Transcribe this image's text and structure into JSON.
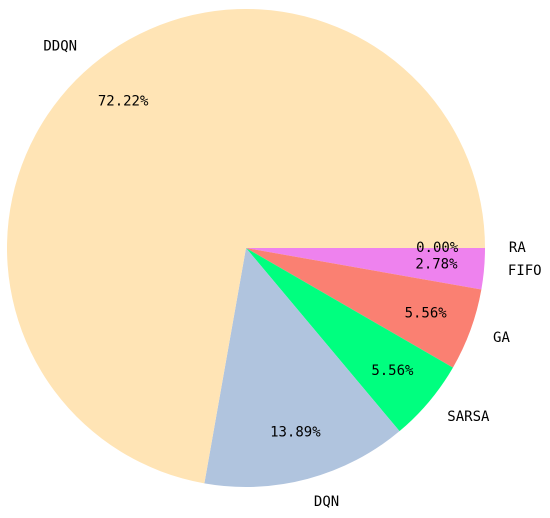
{
  "chart_data": {
    "type": "pie",
    "categories": [
      "RA",
      "FIFO",
      "GA",
      "SARSA",
      "DQN",
      "DDQN"
    ],
    "values": [
      0.0,
      2.78,
      5.56,
      5.56,
      13.89,
      72.22
    ],
    "value_labels": [
      "0.00%",
      "2.78%",
      "5.56%",
      "5.56%",
      "13.89%",
      "72.22%"
    ],
    "colors": [
      "#1e90ff",
      "#ee82ee",
      "#fa8072",
      "#00ff7f",
      "#b0c4de",
      "#ffe4b5"
    ]
  }
}
